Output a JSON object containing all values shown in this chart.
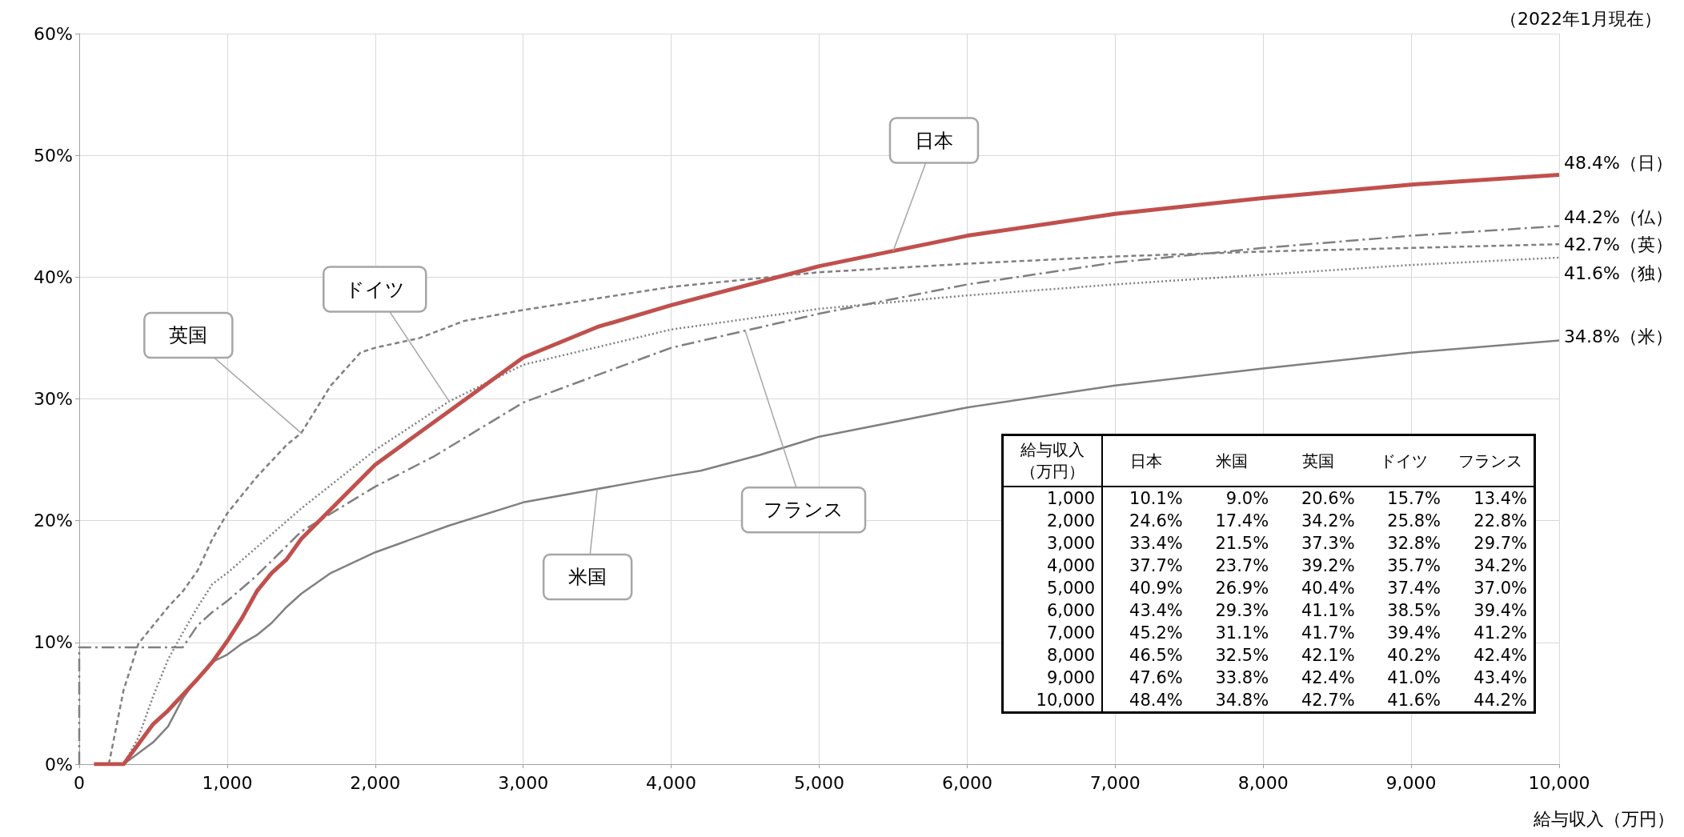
{
  "chart_data": [
    {
      "type": "line",
      "xlabel": "給与収入（万円）",
      "xlim": [
        0,
        10000
      ],
      "xticks": [
        0,
        {
          "value": 1000,
          "label": "1,000"
        },
        {
          "value": 2000,
          "label": "2,000"
        },
        {
          "value": 3000,
          "label": "3,000"
        },
        {
          "value": 4000,
          "label": "4,000"
        },
        {
          "value": 5000,
          "label": "5,000"
        },
        {
          "value": 6000,
          "label": "6,000"
        },
        {
          "value": 7000,
          "label": "7,000"
        },
        {
          "value": 8000,
          "label": "8,000"
        },
        {
          "value": 9000,
          "label": "9,000"
        },
        {
          "value": 10000,
          "label": "10,000"
        }
      ],
      "ylim": [
        0,
        60
      ],
      "yticks": [
        {
          "value": 0,
          "label": "0%"
        },
        {
          "value": 10,
          "label": "10%"
        },
        {
          "value": 20,
          "label": "20%"
        },
        {
          "value": 30,
          "label": "30%"
        },
        {
          "value": 40,
          "label": "40%"
        },
        {
          "value": 50,
          "label": "50%"
        },
        {
          "value": 60,
          "label": "60%"
        }
      ],
      "grid": true,
      "marker": "none",
      "series": [
        {
          "color": "#c0504d",
          "line_style": "solid",
          "x": [
            100,
            300,
            500,
            600,
            800,
            900,
            1000,
            1100,
            1200,
            1300,
            1400,
            1500,
            2000,
            3000,
            3500,
            4000,
            5000,
            6000,
            7000,
            8000,
            9000,
            10000
          ],
          "values": [
            0,
            0,
            3.3,
            4.4,
            7.0,
            8.4,
            10.1,
            12.0,
            14.2,
            15.7,
            16.8,
            18.5,
            24.6,
            33.4,
            35.9,
            37.7,
            40.9,
            43.4,
            45.2,
            46.5,
            47.6,
            48.4
          ]
        },
        {
          "color": "#808080",
          "line_style": "solid",
          "x": [
            100,
            300,
            400,
            500,
            600,
            700,
            800,
            900,
            1000,
            1100,
            1200,
            1300,
            1400,
            1500,
            1700,
            2000,
            2500,
            3000,
            4000,
            4200,
            4600,
            5000,
            6000,
            7000,
            8000,
            9000,
            10000
          ],
          "values": [
            0,
            0,
            0.9,
            1.8,
            3.1,
            5.4,
            7.1,
            8.4,
            9.0,
            9.9,
            10.6,
            11.6,
            12.9,
            14.0,
            15.7,
            17.4,
            19.6,
            21.5,
            23.7,
            24.1,
            25.4,
            26.9,
            29.3,
            31.1,
            32.5,
            33.8,
            34.8
          ]
        },
        {
          "color": "#808080",
          "line_style": "dashed",
          "x": [
            200,
            300,
            400,
            500,
            600,
            700,
            800,
            900,
            1000,
            1200,
            1400,
            1500,
            1700,
            1900,
            2000,
            2300,
            2600,
            3000,
            4000,
            5000,
            6000,
            7000,
            8000,
            9000,
            10000
          ],
          "values": [
            0,
            6.1,
            9.9,
            11.4,
            12.9,
            14.2,
            15.9,
            18.5,
            20.6,
            23.6,
            26.2,
            27.2,
            31.1,
            33.8,
            34.2,
            35.0,
            36.4,
            37.3,
            39.2,
            40.4,
            41.1,
            41.7,
            42.1,
            42.4,
            42.7
          ]
        },
        {
          "color": "#808080",
          "line_style": "dotted",
          "x": [
            300,
            400,
            500,
            600,
            700,
            800,
            900,
            1000,
            1500,
            2000,
            2500,
            3000,
            4000,
            5000,
            6000,
            7000,
            8000,
            9000,
            10000
          ],
          "values": [
            0,
            2.2,
            5.6,
            8.6,
            10.8,
            12.9,
            14.8,
            15.7,
            21.0,
            25.8,
            29.8,
            32.8,
            35.7,
            37.4,
            38.5,
            39.4,
            40.2,
            41.0,
            41.6
          ]
        },
        {
          "color": "#808080",
          "line_style": "dashdot",
          "x": [
            0,
            0,
            700,
            800,
            900,
            1000,
            1200,
            1500,
            2000,
            2400,
            3000,
            4000,
            5000,
            6000,
            7000,
            8000,
            9000,
            10000
          ],
          "values": [
            0,
            9.6,
            9.6,
            11.4,
            12.5,
            13.4,
            15.5,
            19.1,
            22.8,
            25.3,
            29.7,
            34.2,
            37.0,
            39.4,
            41.2,
            42.4,
            43.4,
            44.2
          ]
        }
      ],
      "annotations": [
        "（2022年1月現在）",
        {
          "text": "日本",
          "x": 5500,
          "y": 42.15
        },
        {
          "text": "英国",
          "x": 1500,
          "y": 27.2
        },
        {
          "text": "ドイツ",
          "x": 2500,
          "y": 29.8
        },
        {
          "text": "フランス",
          "x": 4500,
          "y": 35.6
        },
        {
          "text": "米国",
          "x": 3500,
          "y": 22.6
        },
        {
          "text": "48.4%（日）",
          "x": 10000,
          "y": 48.4
        },
        {
          "text": "44.2%（仏）",
          "x": 10000,
          "y": 44.2
        },
        {
          "text": "42.7%（英）",
          "x": 10000,
          "y": 42.7
        },
        {
          "text": "41.6%（独）",
          "x": 10000,
          "y": 41.6
        },
        {
          "text": "34.8%（米）",
          "x": 10000,
          "y": 34.8
        }
      ]
    },
    {
      "type": "heatmap",
      "ylabel": "給与収入（万円）",
      "categories": [
        "日本",
        "米国",
        "英国",
        "ドイツ",
        "フランス"
      ],
      "y_categories": [
        "1,000",
        "2,000",
        "3,000",
        "4,000",
        "5,000",
        "6,000",
        "7,000",
        "8,000",
        "9,000",
        "10,000"
      ],
      "cells": [
        [
          10.1,
          9.0,
          20.6,
          15.7,
          13.4
        ],
        [
          24.6,
          17.4,
          34.2,
          25.8,
          22.8
        ],
        [
          33.4,
          21.5,
          37.3,
          32.8,
          29.7
        ],
        [
          37.7,
          23.7,
          39.2,
          35.7,
          34.2
        ],
        [
          40.9,
          26.9,
          40.4,
          37.4,
          37.0
        ],
        [
          43.4,
          29.3,
          41.1,
          38.5,
          39.4
        ],
        [
          45.2,
          31.1,
          41.7,
          39.4,
          41.2
        ],
        [
          46.5,
          32.5,
          42.1,
          40.2,
          42.4
        ],
        [
          47.6,
          33.8,
          42.4,
          41.0,
          43.4
        ],
        [
          48.4,
          34.8,
          42.7,
          41.6,
          44.2
        ]
      ],
      "cell_labels": [
        [
          "10.1%",
          "9.0%",
          "20.6%",
          "15.7%",
          "13.4%"
        ],
        [
          "24.6%",
          "17.4%",
          "34.2%",
          "25.8%",
          "22.8%"
        ],
        [
          "33.4%",
          "21.5%",
          "37.3%",
          "32.8%",
          "29.7%"
        ],
        [
          "37.7%",
          "23.7%",
          "39.2%",
          "35.7%",
          "34.2%"
        ],
        [
          "40.9%",
          "26.9%",
          "40.4%",
          "37.4%",
          "37.0%"
        ],
        [
          "43.4%",
          "29.3%",
          "41.1%",
          "38.5%",
          "39.4%"
        ],
        [
          "45.2%",
          "31.1%",
          "41.7%",
          "39.4%",
          "41.2%"
        ],
        [
          "46.5%",
          "32.5%",
          "42.1%",
          "40.2%",
          "42.4%"
        ],
        [
          "47.6%",
          "33.8%",
          "42.4%",
          "41.0%",
          "43.4%"
        ],
        [
          "48.4%",
          "34.8%",
          "42.7%",
          "41.6%",
          "44.2%"
        ]
      ]
    }
  ]
}
